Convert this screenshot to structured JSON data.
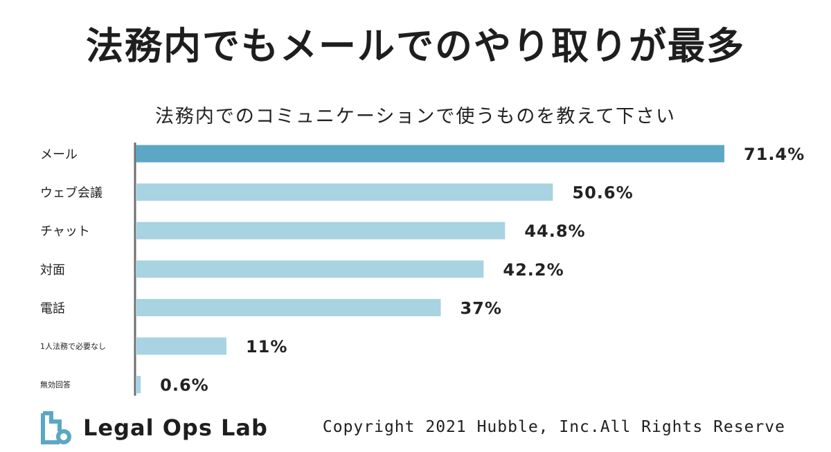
{
  "headline": "法務内でもメールでのやり取りが最多",
  "colors": {
    "highlight_bar": "#5ba7c4",
    "bar": "#a8d3e1",
    "axis": "#6e6e6e",
    "logo": "#5ba7c4"
  },
  "chart_data": {
    "type": "bar",
    "orientation": "horizontal",
    "title": "法務内でのコミュニケーションで使うものを教えて下さい",
    "categories": [
      "メール",
      "ウェブ会議",
      "チャット",
      "対面",
      "電話",
      "1人法務で必要なし",
      "無効回答"
    ],
    "values": [
      71.4,
      50.6,
      44.8,
      42.2,
      37,
      11,
      0.6
    ],
    "value_labels": [
      "71.4%",
      "50.6%",
      "44.8%",
      "42.2%",
      "37%",
      "11%",
      "0.6%"
    ],
    "unit": "%",
    "xlim": [
      0,
      71.4
    ],
    "highlight_index": 0,
    "grid": false,
    "legend": "none"
  },
  "footer": {
    "logo_icon": "legal-ops-lab-logo-icon",
    "logo_text": "Legal Ops Lab",
    "copyright": "Copyright 2021 Hubble, Inc.All Rights Reserve"
  }
}
